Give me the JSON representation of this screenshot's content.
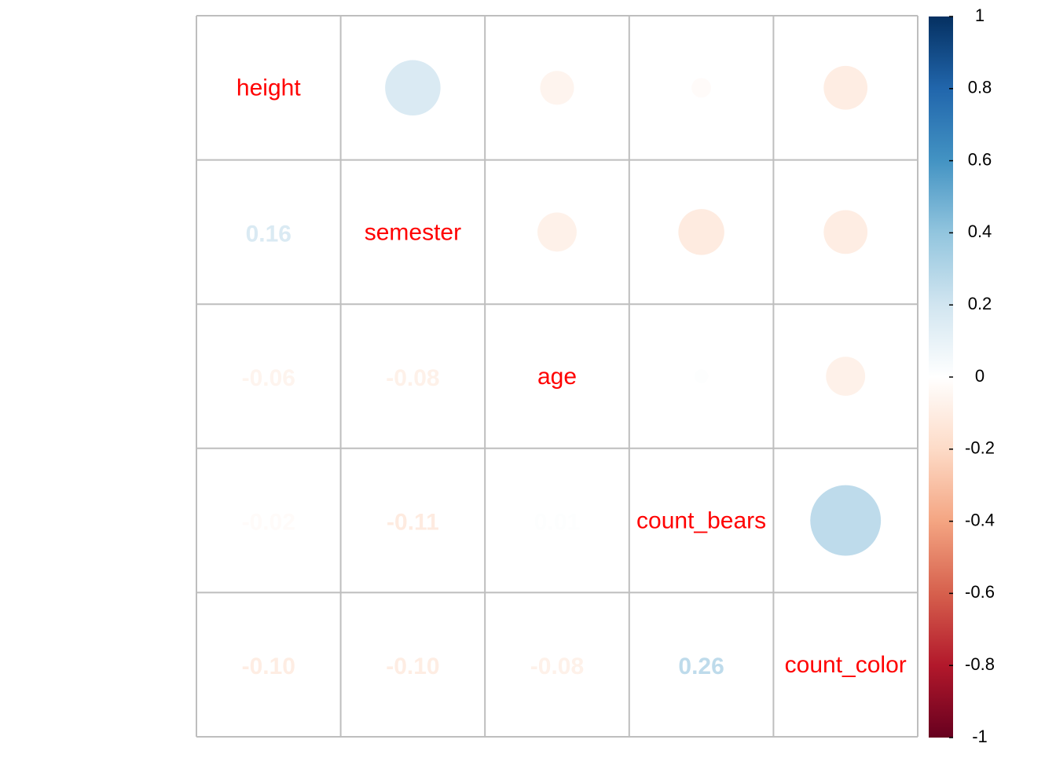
{
  "chart_data": {
    "type": "heatmap",
    "variables": [
      "height",
      "semester",
      "age",
      "count_bears",
      "count_color"
    ],
    "matrix": [
      [
        1.0,
        0.16,
        -0.06,
        -0.02,
        -0.1
      ],
      [
        0.16,
        1.0,
        -0.08,
        -0.11,
        -0.1
      ],
      [
        -0.06,
        -0.08,
        1.0,
        0.01,
        -0.08
      ],
      [
        -0.02,
        -0.11,
        0.01,
        1.0,
        0.26
      ],
      [
        -0.1,
        -0.1,
        -0.08,
        0.26,
        1.0
      ]
    ],
    "lower_labels": [
      {
        "row": 1,
        "col": 0,
        "text": "0.16"
      },
      {
        "row": 2,
        "col": 0,
        "text": "-0.06"
      },
      {
        "row": 2,
        "col": 1,
        "text": "-0.08"
      },
      {
        "row": 3,
        "col": 0,
        "text": "-0.02"
      },
      {
        "row": 3,
        "col": 1,
        "text": "-0.11"
      },
      {
        "row": 3,
        "col": 2,
        "text": "0.01"
      },
      {
        "row": 4,
        "col": 0,
        "text": "-0.10"
      },
      {
        "row": 4,
        "col": 1,
        "text": "-0.10"
      },
      {
        "row": 4,
        "col": 2,
        "text": "-0.08"
      },
      {
        "row": 4,
        "col": 3,
        "text": "0.26"
      }
    ],
    "upper_shape": "circle",
    "lower_shape": "number",
    "diagonal": "variable-name",
    "color_range": [
      -1,
      1
    ],
    "colorbar": {
      "ticks": [
        "1",
        "0.8",
        "0.6",
        "0.4",
        "0.2",
        "0",
        "-0.2",
        "-0.4",
        "-0.6",
        "-0.8",
        "-1"
      ],
      "placement": "right",
      "palette": [
        "#67001f",
        "#b2182b",
        "#d6604d",
        "#f4a582",
        "#fddbc7",
        "#ffffff",
        "#d1e5f0",
        "#92c5de",
        "#4393c3",
        "#2166ac",
        "#053061"
      ]
    },
    "label_color": "#ff0000",
    "grid_color": "#bebebe",
    "grid": true
  }
}
